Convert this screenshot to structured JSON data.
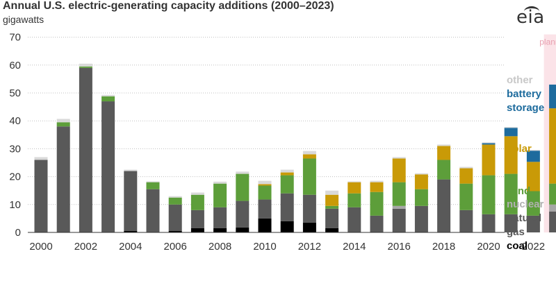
{
  "chart_data": {
    "type": "bar",
    "stacked": true,
    "title": "Annual U.S. electric-generating capacity additions (2000–2023)",
    "ylabel": "gigawatts",
    "ylim": [
      0,
      70
    ],
    "yticks": [
      0,
      10,
      20,
      30,
      40,
      50,
      60,
      70
    ],
    "x": [
      2000,
      2001,
      2002,
      2003,
      2004,
      2005,
      2006,
      2007,
      2008,
      2009,
      2010,
      2011,
      2012,
      2013,
      2014,
      2015,
      2016,
      2017,
      2018,
      2019,
      2020,
      2021,
      2022,
      2023
    ],
    "xtick_labels": [
      "2000",
      "2002",
      "2004",
      "2006",
      "2008",
      "2010",
      "2012",
      "2014",
      "2016",
      "2018",
      "2020",
      "2022"
    ],
    "planned_label": "planned",
    "planned_year": 2023,
    "grid": true,
    "legend_placement": "right",
    "series": [
      {
        "name": "coal",
        "color": "#000000",
        "values": [
          0,
          0,
          0,
          0,
          0.5,
          0,
          0.5,
          1.5,
          1.5,
          1.8,
          5,
          4,
          3.5,
          1.5,
          0,
          0,
          0,
          0,
          0,
          0,
          0,
          0,
          0,
          0
        ]
      },
      {
        "name": "natural gas",
        "color": "#595959",
        "values": [
          26,
          38,
          59,
          47,
          21.5,
          15.5,
          9.5,
          6.5,
          7.5,
          9.5,
          6.8,
          10,
          10,
          7,
          9,
          6,
          8.5,
          9.5,
          19,
          8,
          6.5,
          6.5,
          6,
          7.5
        ]
      },
      {
        "name": "nuclear",
        "color": "#a6a6a6",
        "values": [
          0,
          0,
          0,
          0,
          0,
          0,
          0,
          0,
          0,
          0,
          0,
          0,
          0,
          0,
          0,
          0,
          1,
          0,
          0,
          0,
          0,
          0,
          0,
          2.5
        ]
      },
      {
        "name": "wind",
        "color": "#5d9e3a",
        "values": [
          0,
          1.5,
          0.5,
          1.8,
          0,
          2.5,
          2.5,
          5.5,
          8.5,
          9.7,
          5,
          6.5,
          13,
          1,
          5,
          8.5,
          8.5,
          6,
          7,
          9.5,
          14,
          14.5,
          8.8,
          7.5
        ]
      },
      {
        "name": "solar",
        "color": "#c99a07",
        "values": [
          0,
          0,
          0,
          0,
          0,
          0,
          0,
          0,
          0,
          0,
          0.5,
          1,
          1.5,
          4,
          4,
          3.5,
          8.5,
          5.3,
          5,
          5.5,
          11,
          13.5,
          10.5,
          27
        ]
      },
      {
        "name": "battery storage",
        "color": "#1d6b9d",
        "values": [
          0,
          0,
          0,
          0,
          0,
          0,
          0,
          0,
          0,
          0,
          0,
          0,
          0,
          0,
          0,
          0,
          0,
          0,
          0,
          0,
          0.5,
          3,
          4,
          8.5
        ]
      },
      {
        "name": "other",
        "color": "#d9d9d9",
        "values": [
          1,
          1.2,
          1,
          0.5,
          0.5,
          0.3,
          0.5,
          0.8,
          0.7,
          0.8,
          1.2,
          1,
          1.2,
          1.5,
          0.3,
          0.5,
          0.5,
          0.4,
          0.5,
          0.5,
          0.3,
          0.3,
          0.3,
          0
        ]
      }
    ]
  },
  "logo": "eia",
  "colors": {
    "axis": "#333333",
    "grid": "#bfbfbf",
    "planned_band": "#fbe3e8",
    "planned_text": "#e8a0b0",
    "other_legend": "#c8c8c8",
    "nuclear_legend": "#b0b0b0"
  }
}
